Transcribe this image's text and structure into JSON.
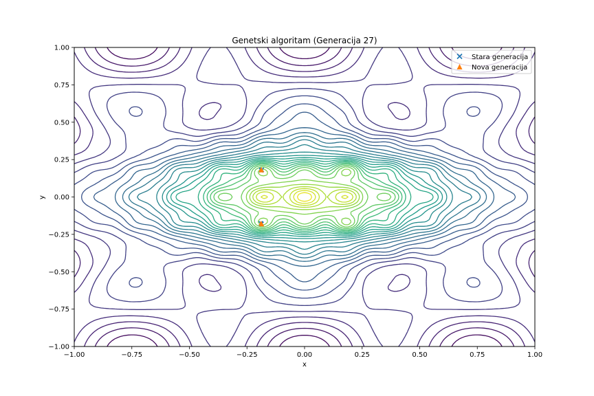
{
  "chart_data": {
    "type": "contour",
    "title": "Genetski algoritam (Generacija 27)",
    "xlabel": "x",
    "ylabel": "y",
    "xlim": [
      -1.0,
      1.0
    ],
    "ylim": [
      -1.0,
      1.0
    ],
    "x_ticks": [
      "−1.00",
      "−0.75",
      "−0.50",
      "−0.25",
      "0.00",
      "0.25",
      "0.50",
      "0.75",
      "1.00"
    ],
    "y_ticks": [
      "−1.00",
      "−0.75",
      "−0.50",
      "−0.25",
      "0.00",
      "0.25",
      "0.50",
      "0.75",
      "1.00"
    ],
    "grid": false,
    "legend_position": "upper right",
    "colormap": "viridis",
    "contour_levels": 30,
    "series": [
      {
        "name": "Stara generacija",
        "marker": "x",
        "color": "#1f77b4",
        "points": [
          {
            "x": -0.188,
            "y": 0.178
          },
          {
            "x": -0.186,
            "y": 0.182
          },
          {
            "x": -0.19,
            "y": -0.176
          },
          {
            "x": -0.187,
            "y": -0.18
          }
        ]
      },
      {
        "name": "Nova generacija",
        "marker": "triangle",
        "color": "#ff7f0e",
        "points": [
          {
            "x": -0.187,
            "y": 0.178
          },
          {
            "x": -0.188,
            "y": 0.183
          },
          {
            "x": -0.189,
            "y": -0.177
          },
          {
            "x": -0.186,
            "y": -0.183
          }
        ]
      }
    ]
  }
}
